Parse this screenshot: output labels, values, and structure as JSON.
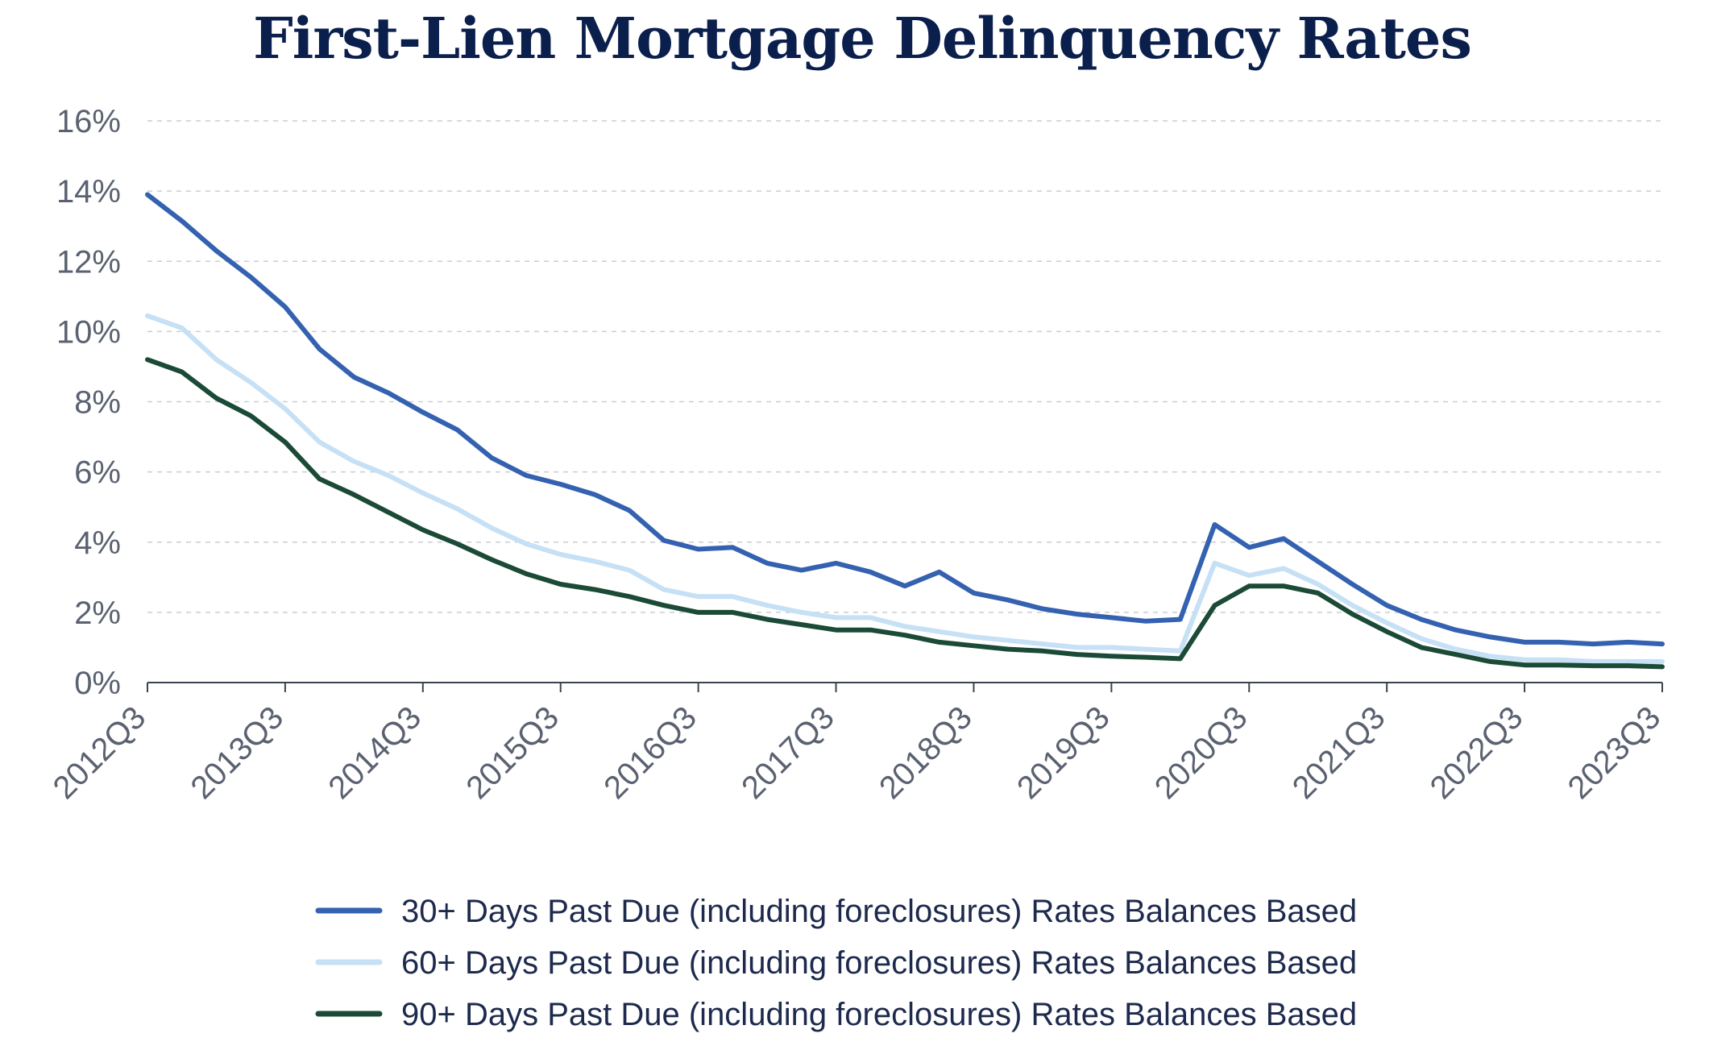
{
  "chart_data": {
    "type": "line",
    "title": "First-Lien Mortgage Delinquency Rates",
    "xlabel": "",
    "ylabel": "",
    "ylim": [
      0,
      16
    ],
    "y_ticks": [
      "0%",
      "2%",
      "4%",
      "6%",
      "8%",
      "10%",
      "12%",
      "14%",
      "16%"
    ],
    "x_tick_labels": [
      "2012Q3",
      "2013Q3",
      "2014Q3",
      "2015Q3",
      "2016Q3",
      "2017Q3",
      "2018Q3",
      "2019Q3",
      "2020Q3",
      "2021Q3",
      "2022Q3",
      "2023Q3"
    ],
    "grid": true,
    "legend_position": "bottom-center",
    "x": [
      "2012Q3",
      "2012Q4",
      "2013Q1",
      "2013Q2",
      "2013Q3",
      "2013Q4",
      "2014Q1",
      "2014Q2",
      "2014Q3",
      "2014Q4",
      "2015Q1",
      "2015Q2",
      "2015Q3",
      "2015Q4",
      "2016Q1",
      "2016Q2",
      "2016Q3",
      "2016Q4",
      "2017Q1",
      "2017Q2",
      "2017Q3",
      "2017Q4",
      "2018Q1",
      "2018Q2",
      "2018Q3",
      "2018Q4",
      "2019Q1",
      "2019Q2",
      "2019Q3",
      "2019Q4",
      "2020Q1",
      "2020Q2",
      "2020Q3",
      "2020Q4",
      "2021Q1",
      "2021Q2",
      "2021Q3",
      "2021Q4",
      "2022Q1",
      "2022Q2",
      "2022Q3",
      "2022Q4",
      "2023Q1",
      "2023Q2",
      "2023Q3"
    ],
    "series": [
      {
        "name": "30+ Days Past Due (including foreclosures) Rates Balances Based",
        "color": "#3461b0",
        "values": [
          13.9,
          13.15,
          12.3,
          11.55,
          10.7,
          9.5,
          8.7,
          8.25,
          7.7,
          7.2,
          6.4,
          5.9,
          5.65,
          5.35,
          4.9,
          4.05,
          3.8,
          3.85,
          3.4,
          3.2,
          3.4,
          3.15,
          2.75,
          3.15,
          2.55,
          2.35,
          2.1,
          1.95,
          1.85,
          1.75,
          1.8,
          4.5,
          3.85,
          4.1,
          3.45,
          2.8,
          2.2,
          1.8,
          1.5,
          1.3,
          1.15,
          1.15,
          1.1,
          1.15,
          1.1
        ]
      },
      {
        "name": "60+ Days Past Due (including foreclosures) Rates Balances Based",
        "color": "#c6e0f5",
        "values": [
          10.45,
          10.1,
          9.2,
          8.55,
          7.8,
          6.85,
          6.3,
          5.9,
          5.4,
          4.95,
          4.4,
          3.95,
          3.65,
          3.45,
          3.2,
          2.65,
          2.45,
          2.45,
          2.2,
          2.0,
          1.85,
          1.85,
          1.6,
          1.45,
          1.3,
          1.2,
          1.1,
          1.0,
          1.0,
          0.95,
          0.9,
          3.4,
          3.05,
          3.25,
          2.8,
          2.2,
          1.7,
          1.25,
          0.95,
          0.75,
          0.65,
          0.65,
          0.6,
          0.6,
          0.6
        ]
      },
      {
        "name": "90+ Days Past Due (including foreclosures) Rates Balances Based",
        "color": "#1b4a36",
        "values": [
          9.2,
          8.85,
          8.1,
          7.6,
          6.85,
          5.8,
          5.35,
          4.85,
          4.35,
          3.95,
          3.5,
          3.1,
          2.8,
          2.65,
          2.45,
          2.2,
          2.0,
          2.0,
          1.8,
          1.65,
          1.5,
          1.5,
          1.35,
          1.15,
          1.05,
          0.95,
          0.9,
          0.8,
          0.75,
          0.72,
          0.68,
          2.2,
          2.75,
          2.75,
          2.55,
          1.95,
          1.45,
          1.0,
          0.8,
          0.6,
          0.5,
          0.5,
          0.48,
          0.48,
          0.45
        ]
      }
    ]
  }
}
